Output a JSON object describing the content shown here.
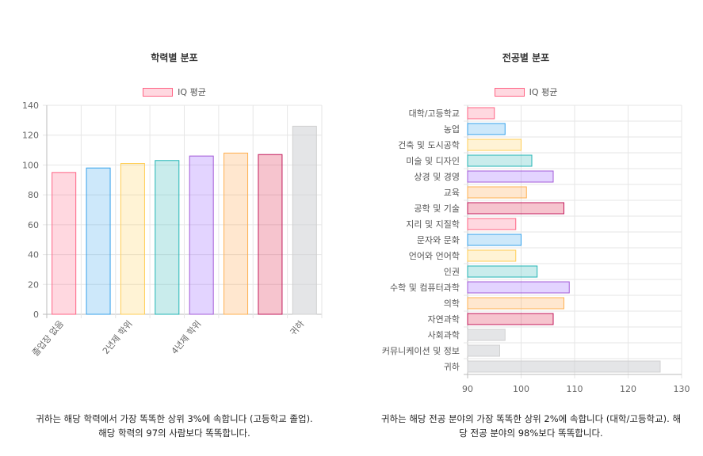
{
  "colors": {
    "pink": {
      "fill": "rgba(255,99,132,0.25)",
      "stroke": "#ff6384"
    },
    "blue": {
      "fill": "rgba(54,162,235,0.25)",
      "stroke": "#36a2eb"
    },
    "yellow": {
      "fill": "rgba(255,206,86,0.25)",
      "stroke": "#ffce56"
    },
    "teal": {
      "fill": "rgba(75,192,192,0.3)",
      "stroke": "#22b5b5"
    },
    "purple": {
      "fill": "rgba(153,102,255,0.28)",
      "stroke": "#a35bd8"
    },
    "orange": {
      "fill": "rgba(255,159,64,0.25)",
      "stroke": "#ffb050"
    },
    "crimson": {
      "fill": "rgba(220,20,60,0.25)",
      "stroke": "#c2185b"
    },
    "gray": {
      "fill": "rgba(201,203,207,0.5)",
      "stroke": "#d0d0d0"
    }
  },
  "chart_data": [
    {
      "type": "bar",
      "orientation": "vertical",
      "title": "학력별 분포",
      "legend": {
        "label": "IQ 평균",
        "position": "top"
      },
      "categories": [
        "졸업장 없음",
        "",
        "2년제 학위",
        "",
        "4년제 학위",
        "",
        "",
        "귀하"
      ],
      "values": [
        95,
        98,
        101,
        103,
        106,
        108,
        107,
        126
      ],
      "bar_colors": [
        "pink",
        "blue",
        "yellow",
        "teal",
        "purple",
        "orange",
        "crimson",
        "gray"
      ],
      "ylim": [
        0,
        140
      ],
      "y_ticks": [
        0,
        20,
        40,
        60,
        80,
        100,
        120,
        140
      ],
      "grid": true
    },
    {
      "type": "bar",
      "orientation": "horizontal",
      "title": "전공별 분포",
      "legend": {
        "label": "IQ 평균",
        "position": "top"
      },
      "categories": [
        "대학/고등학교",
        "농업",
        "건축 및 도시공학",
        "미술 및 디자인",
        "상경 및 경영",
        "교육",
        "공학 및 기술",
        "지리 및 지질학",
        "문자와 문화",
        "언어와 언어학",
        "인권",
        "수학 및 컴퓨터과학",
        "의학",
        "자연과학",
        "사회과학",
        "커뮤니케이션 및 정보",
        "귀하"
      ],
      "values": [
        95,
        97,
        100,
        102,
        106,
        101,
        108,
        99,
        100,
        99,
        103,
        109,
        108,
        106,
        97,
        96,
        126
      ],
      "bar_colors": [
        "pink",
        "blue",
        "yellow",
        "teal",
        "purple",
        "orange",
        "crimson",
        "pink",
        "blue",
        "yellow",
        "teal",
        "purple",
        "orange",
        "crimson",
        "gray",
        "gray",
        "gray"
      ],
      "xlim": [
        90,
        130
      ],
      "x_ticks": [
        90,
        100,
        110,
        120,
        130
      ],
      "grid": true
    }
  ],
  "captions": {
    "left": "귀하는 해당 학력에서 가장 똑똑한 상위 3%에 속합니다 (고등학교 졸업). 해당 학력의 97의 사람보다 똑똑합니다.",
    "right": "귀하는 해당 전공 분야의 가장 똑똑한 상위 2%에 속합니다 (대학/고등학교). 해당 전공 분야의 98%보다 똑똑합니다."
  }
}
